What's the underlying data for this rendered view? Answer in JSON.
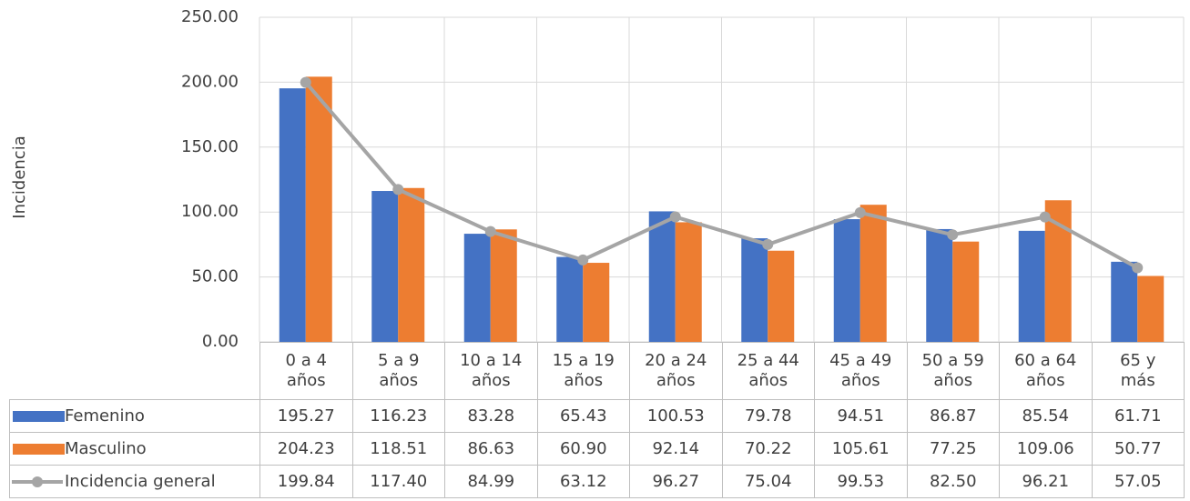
{
  "chart_data": {
    "type": "bar-line",
    "y_label": "Incidencia",
    "categories": [
      "0 a 4 años",
      "5 a 9 años",
      "10 a 14 años",
      "15 a 19 años",
      "20 a 24 años",
      "25 a 44 años",
      "45 a 49 años",
      "50 a 59 años",
      "60 a 64 años",
      "65 y más"
    ],
    "series": [
      {
        "name": "Femenino",
        "type": "bar",
        "color": "#4472c4",
        "values": [
          195.27,
          116.23,
          83.28,
          65.43,
          100.53,
          79.78,
          94.51,
          86.87,
          85.54,
          61.71
        ],
        "value_labels": [
          "195.27",
          "116.23",
          "83.28",
          "65.43",
          "100.53",
          "79.78",
          "94.51",
          "86.87",
          "85.54",
          "61.71"
        ]
      },
      {
        "name": "Masculino",
        "type": "bar",
        "color": "#ed7d31",
        "values": [
          204.23,
          118.51,
          86.63,
          60.9,
          92.14,
          70.22,
          105.61,
          77.25,
          109.06,
          50.77
        ],
        "value_labels": [
          "204.23",
          "118.51",
          "86.63",
          "60.90",
          "92.14",
          "70.22",
          "105.61",
          "77.25",
          "109.06",
          "50.77"
        ]
      },
      {
        "name": "Incidencia general",
        "type": "line",
        "color": "#a5a5a5",
        "values": [
          199.84,
          117.4,
          84.99,
          63.12,
          96.27,
          75.04,
          99.53,
          82.5,
          96.21,
          57.05
        ],
        "value_labels": [
          "199.84",
          "117.40",
          "84.99",
          "63.12",
          "96.27",
          "75.04",
          "99.53",
          "82.50",
          "96.21",
          "57.05"
        ]
      }
    ],
    "ylim": [
      0,
      250
    ],
    "yticks": [
      {
        "value": 0,
        "label": "0.00"
      },
      {
        "value": 50,
        "label": "50.00"
      },
      {
        "value": 100,
        "label": "100.00"
      },
      {
        "value": 150,
        "label": "150.00"
      },
      {
        "value": 200,
        "label": "200.00"
      },
      {
        "value": 250,
        "label": "250.00"
      }
    ],
    "grid": true
  }
}
